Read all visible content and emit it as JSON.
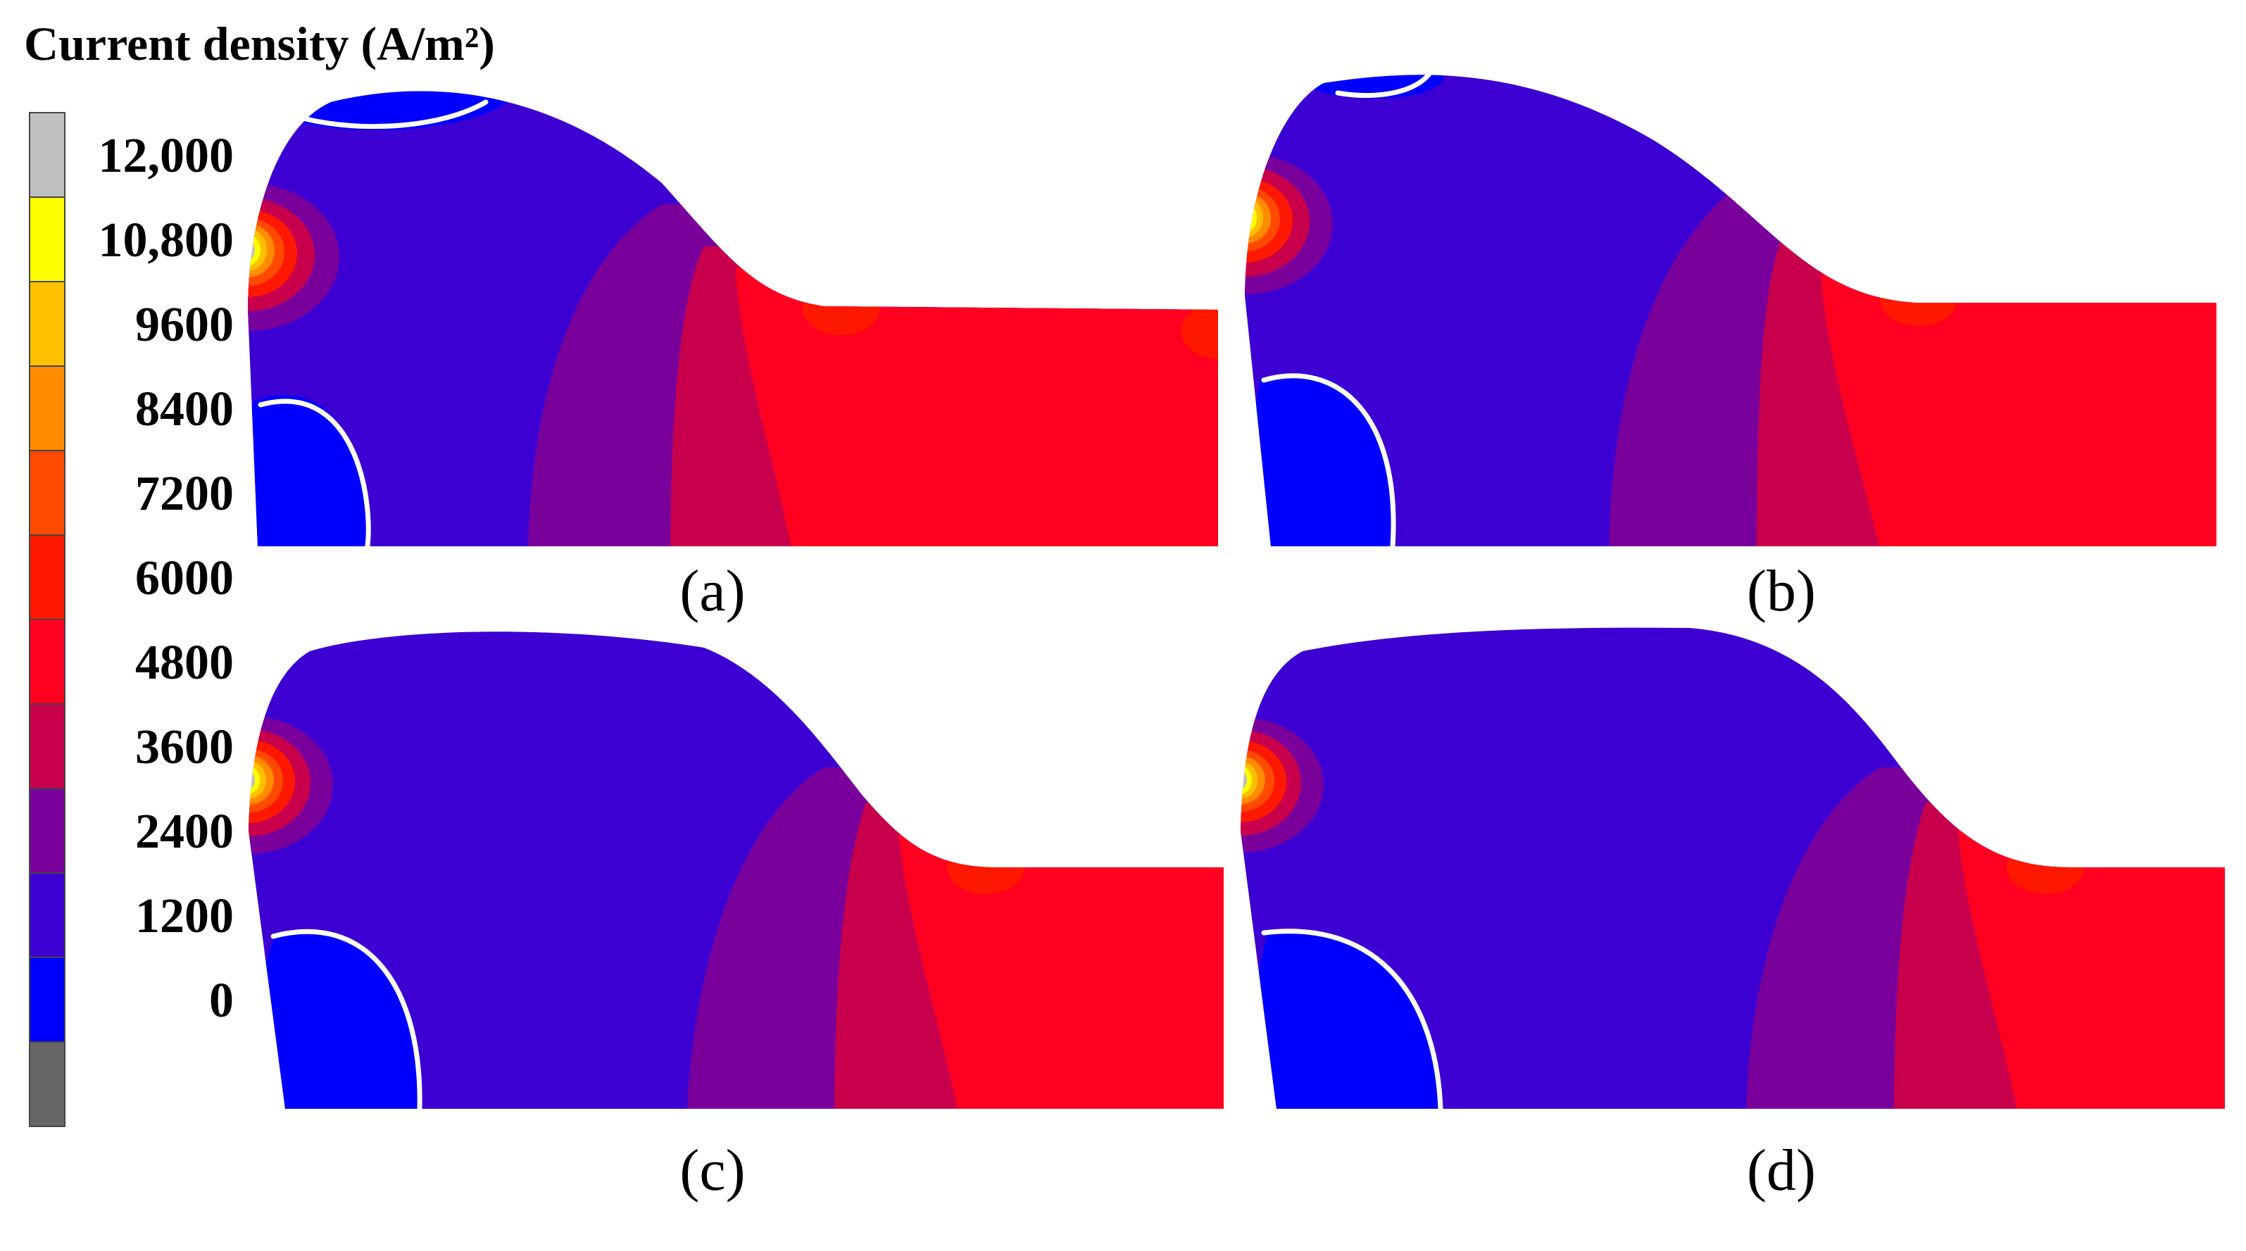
{
  "legend": {
    "title": "Current density (A/m²)",
    "ticks": [
      "12,000",
      "10,800",
      "9600",
      "8400",
      "7200",
      "6000",
      "4800",
      "3600",
      "2400",
      "1200",
      "0"
    ],
    "band_colors": [
      "#c0c0c0",
      "#ffff00",
      "#ffc000",
      "#ff8c00",
      "#ff4a00",
      "#ff1800",
      "#ff0020",
      "#c8004c",
      "#7a009c",
      "#3c00d2",
      "#0000ff",
      "#666666"
    ]
  },
  "panels": [
    {
      "label": "(a)"
    },
    {
      "label": "(b)"
    },
    {
      "label": "(c)"
    },
    {
      "label": "(d)"
    }
  ],
  "colors": {
    "blue": "#3c00d2",
    "pure_blue": "#0000ff",
    "purple": "#7a009c",
    "crimson": "#c8004c",
    "red": "#ff0020",
    "hot_red": "#ff1800",
    "orange_red": "#ff4a00",
    "orange": "#ff8c00",
    "amber": "#ffc000",
    "yellow": "#ffff00",
    "grey": "#c0c0c0",
    "contour": "#ffffff"
  }
}
